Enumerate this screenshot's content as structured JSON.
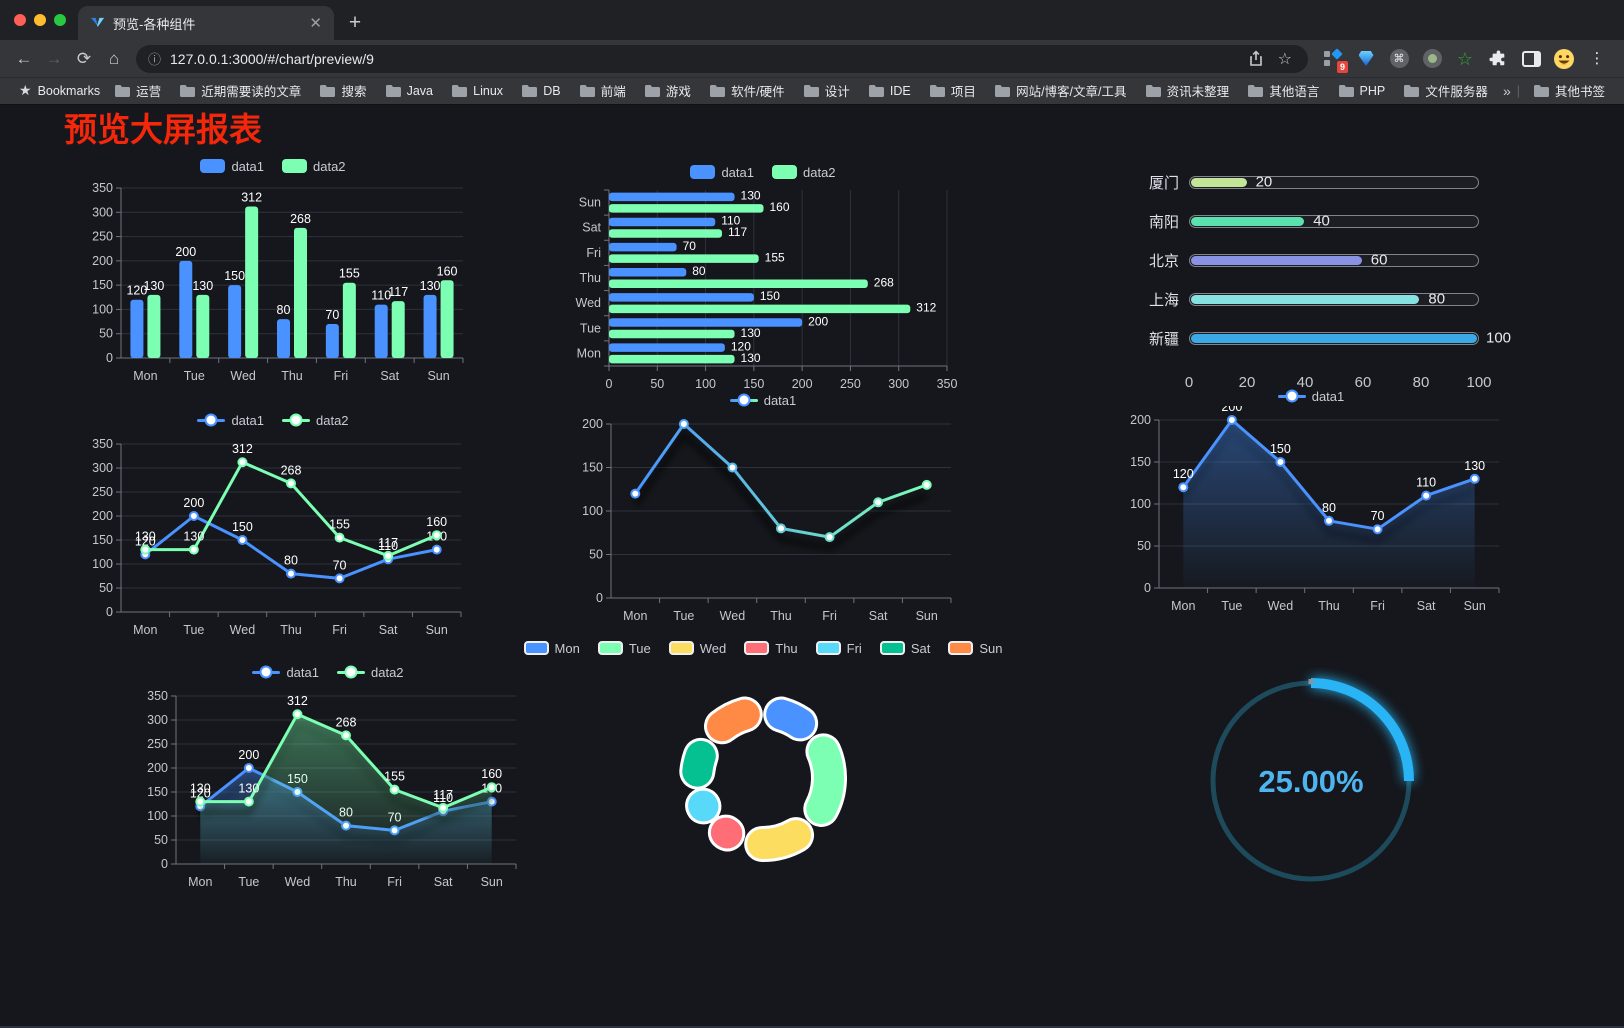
{
  "browser": {
    "tab": {
      "title": "预览-各种组件"
    },
    "newtab_label": "+",
    "url": "127.0.0.1:3000/#/chart/preview/9",
    "extension_badge": "9",
    "bookmarks_label": "Bookmarks",
    "bookmarks": [
      "运营",
      "近期需要读的文章",
      "搜索",
      "Java",
      "Linux",
      "DB",
      "前端",
      "游戏",
      "软件/硬件",
      "设计",
      "IDE",
      "项目",
      "网站/博客/文章/工具",
      "资讯未整理",
      "其他语言",
      "PHP",
      "文件服务器"
    ],
    "overflow": "»",
    "other_bookmarks": "其他书签"
  },
  "page": {
    "title": "预览大屏报表"
  },
  "colors": {
    "data1": "#4992ff",
    "data2": "#7cffb2",
    "axis": "#70737e",
    "grid": "#2f323b",
    "tick": "#c6c7ce"
  },
  "chart_data": [
    {
      "type": "bar",
      "orientation": "vertical",
      "categories": [
        "Mon",
        "Tue",
        "Wed",
        "Thu",
        "Fri",
        "Sat",
        "Sun"
      ],
      "series": [
        {
          "name": "data1",
          "color": "#4992ff",
          "values": [
            120,
            200,
            150,
            80,
            70,
            110,
            130
          ]
        },
        {
          "name": "data2",
          "color": "#7cffb2",
          "values": [
            130,
            130,
            312,
            268,
            155,
            117,
            160
          ]
        }
      ],
      "ylim": [
        0,
        350
      ],
      "ytick_step": 50,
      "labels": true,
      "legend": {
        "type": "rect",
        "items": [
          {
            "label": "data1",
            "color": "#4992ff"
          },
          {
            "label": "data2",
            "color": "#7cffb2"
          }
        ]
      }
    },
    {
      "type": "bar",
      "orientation": "horizontal",
      "categories": [
        "Mon",
        "Tue",
        "Wed",
        "Thu",
        "Fri",
        "Sat",
        "Sun"
      ],
      "series": [
        {
          "name": "data1",
          "color": "#4992ff",
          "values": [
            120,
            200,
            150,
            80,
            70,
            110,
            130
          ]
        },
        {
          "name": "data2",
          "color": "#7cffb2",
          "values": [
            130,
            130,
            312,
            268,
            155,
            117,
            160
          ]
        }
      ],
      "xlim": [
        0,
        350
      ],
      "xtick_step": 50,
      "labels": true,
      "legend": {
        "type": "rect",
        "items": [
          {
            "label": "data1",
            "color": "#4992ff"
          },
          {
            "label": "data2",
            "color": "#7cffb2"
          }
        ]
      }
    },
    {
      "type": "progress",
      "items": [
        {
          "label": "厦门",
          "value": 20,
          "color": "#c3e597"
        },
        {
          "label": "南阳",
          "value": 40,
          "color": "#5be1ad"
        },
        {
          "label": "北京",
          "value": 60,
          "color": "#8a92e3"
        },
        {
          "label": "上海",
          "value": 80,
          "color": "#86e2e0"
        },
        {
          "label": "新疆",
          "value": 100,
          "color": "#3aa9e5"
        }
      ],
      "max": 100,
      "ticks": [
        0,
        20,
        40,
        60,
        80,
        100
      ]
    },
    {
      "type": "line",
      "categories": [
        "Mon",
        "Tue",
        "Wed",
        "Thu",
        "Fri",
        "Sat",
        "Sun"
      ],
      "series": [
        {
          "name": "data1",
          "color": "#4992ff",
          "values": [
            120,
            200,
            150,
            80,
            70,
            110,
            130
          ]
        },
        {
          "name": "data2",
          "color": "#7cffb2",
          "values": [
            130,
            130,
            312,
            268,
            155,
            117,
            160
          ]
        }
      ],
      "ylim": [
        0,
        350
      ],
      "ytick_step": 50,
      "labels": true,
      "shadow": false,
      "legend": {
        "type": "line",
        "items": [
          {
            "label": "data1",
            "color": "#4992ff"
          },
          {
            "label": "data2",
            "color": "#7cffb2"
          }
        ]
      }
    },
    {
      "type": "line",
      "categories": [
        "Mon",
        "Tue",
        "Wed",
        "Thu",
        "Fri",
        "Sat",
        "Sun"
      ],
      "series": [
        {
          "name": "data1",
          "gradient": [
            "#4992ff",
            "#7cffb2"
          ],
          "values": [
            120,
            200,
            150,
            80,
            70,
            110,
            130
          ]
        }
      ],
      "ylim": [
        0,
        200
      ],
      "ytick_step": 50,
      "labels": false,
      "shadow": true,
      "legend": {
        "type": "line",
        "items": [
          {
            "label": "data1",
            "gradient": [
              "#4992ff",
              "#7cffb2"
            ]
          }
        ]
      }
    },
    {
      "type": "line",
      "categories": [
        "Mon",
        "Tue",
        "Wed",
        "Thu",
        "Fri",
        "Sat",
        "Sun"
      ],
      "series": [
        {
          "name": "data1",
          "color": "#4992ff",
          "values": [
            120,
            200,
            150,
            80,
            70,
            110,
            130
          ],
          "area": true
        }
      ],
      "ylim": [
        0,
        200
      ],
      "ytick_step": 50,
      "labels": true,
      "shadow": true,
      "legend": {
        "type": "line",
        "items": [
          {
            "label": "data1",
            "color": "#4992ff"
          }
        ]
      }
    },
    {
      "type": "line",
      "categories": [
        "Mon",
        "Tue",
        "Wed",
        "Thu",
        "Fri",
        "Sat",
        "Sun"
      ],
      "series": [
        {
          "name": "data1",
          "color": "#4992ff",
          "values": [
            120,
            200,
            150,
            80,
            70,
            110,
            130
          ],
          "area": true
        },
        {
          "name": "data2",
          "color": "#7cffb2",
          "values": [
            130,
            130,
            312,
            268,
            155,
            117,
            160
          ],
          "area": true
        }
      ],
      "ylim": [
        0,
        350
      ],
      "ytick_step": 50,
      "labels": true,
      "shadow": true,
      "legend": {
        "type": "line",
        "items": [
          {
            "label": "data1",
            "color": "#4992ff"
          },
          {
            "label": "data2",
            "color": "#7cffb2"
          }
        ]
      }
    },
    {
      "type": "pie",
      "categories": [
        "Mon",
        "Tue",
        "Wed",
        "Thu",
        "Fri",
        "Sat",
        "Sun"
      ],
      "values": [
        120,
        200,
        150,
        80,
        70,
        110,
        130
      ],
      "colors": [
        "#4992ff",
        "#7cffb2",
        "#fddd60",
        "#ff6e76",
        "#58d9f9",
        "#05c091",
        "#ff8a45"
      ]
    },
    {
      "type": "gauge",
      "text": "25.00%",
      "percent": 25,
      "color": "#28b4f5",
      "track": "#1d4b5c",
      "text_color": "#4fb5f1"
    }
  ]
}
